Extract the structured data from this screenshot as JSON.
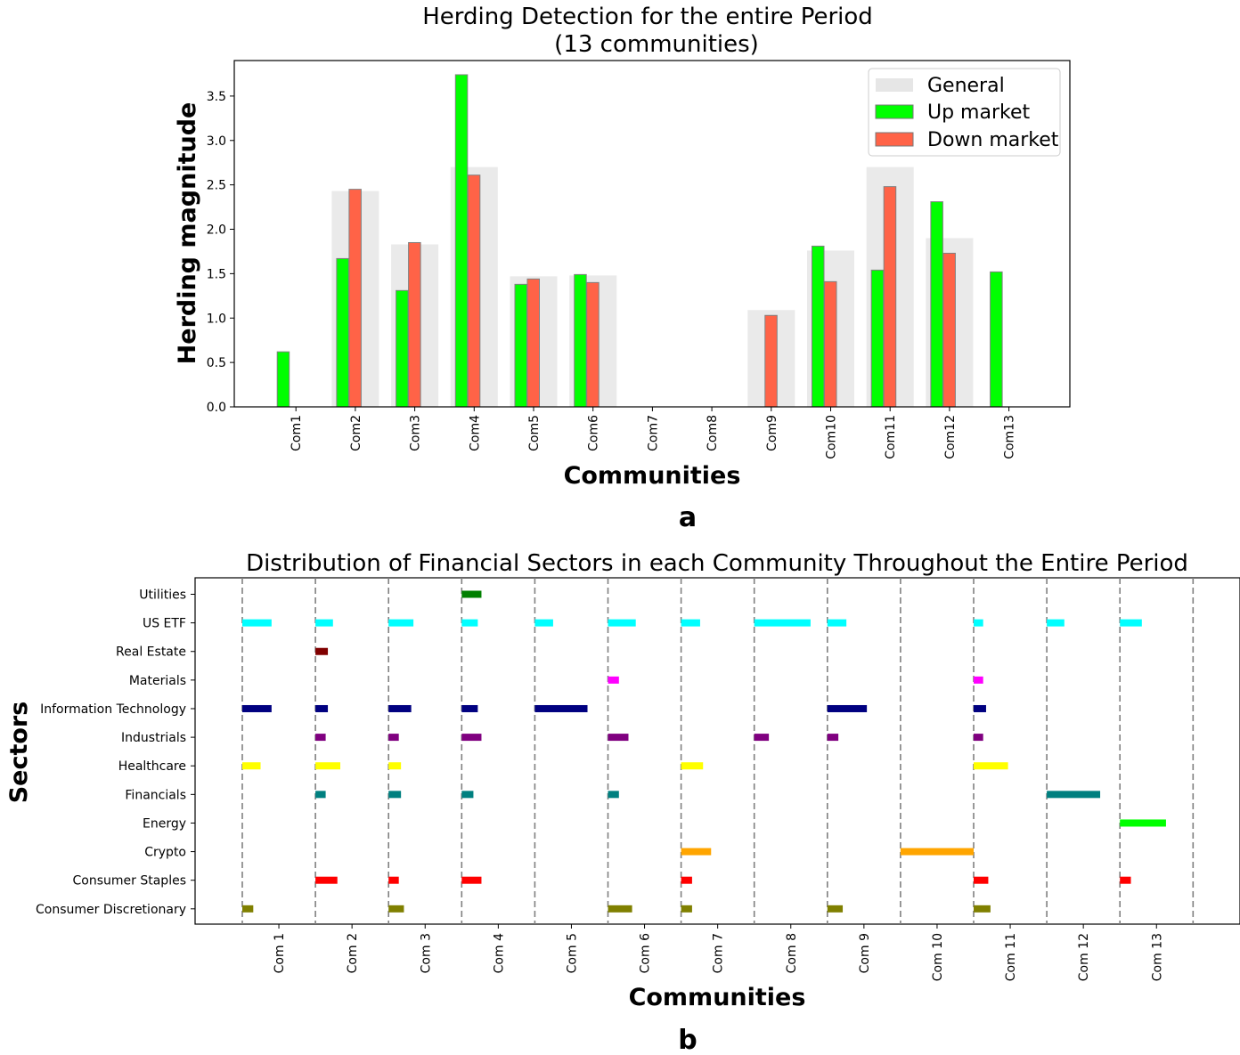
{
  "panel_a": {
    "label": "a",
    "chart_data": {
      "type": "bar",
      "title_line1": "Herding Detection for the entire Period",
      "title_line2": "(13 communities)",
      "xlabel": "Communities",
      "ylabel": "Herding magnitude",
      "categories": [
        "Com1",
        "Com2",
        "Com3",
        "Com4",
        "Com5",
        "Com6",
        "Com7",
        "Com8",
        "Com9",
        "Com10",
        "Com11",
        "Com12",
        "Com13"
      ],
      "yticks": [
        "0.0",
        "0.5",
        "1.0",
        "1.5",
        "2.0",
        "2.5",
        "3.0",
        "3.5"
      ],
      "ylim": [
        0,
        3.9
      ],
      "legend": [
        "General",
        "Up market",
        "Down market"
      ],
      "series": [
        {
          "name": "General",
          "color": "#e6e6e6",
          "values": [
            0,
            2.43,
            1.83,
            2.7,
            1.47,
            1.48,
            0,
            0,
            1.09,
            1.76,
            2.7,
            1.9,
            0
          ]
        },
        {
          "name": "Up market",
          "color": "#00ff00",
          "values": [
            0.62,
            1.67,
            1.31,
            3.74,
            1.38,
            1.49,
            0,
            0,
            0,
            1.81,
            1.54,
            2.31,
            1.52
          ]
        },
        {
          "name": "Down market",
          "color": "#ff6347",
          "values": [
            0,
            2.45,
            1.85,
            2.61,
            1.44,
            1.4,
            0,
            0,
            1.03,
            1.41,
            2.48,
            1.73,
            0
          ]
        }
      ]
    }
  },
  "panel_b": {
    "label": "b",
    "chart_data": {
      "type": "bar",
      "title": "Distribution of Financial Sectors in each Community Throughout the Entire Period",
      "xlabel": "Communities",
      "ylabel": "Sectors",
      "categories": [
        "Com 1",
        "Com 2",
        "Com 3",
        "Com 4",
        "Com 5",
        "Com 6",
        "Com 7",
        "Com 8",
        "Com 9",
        "Com 10",
        "Com 11",
        "Com 12",
        "Com 13"
      ],
      "sectors": [
        "Utilities",
        "US ETF",
        "Real Estate",
        "Materials",
        "Information Technology",
        "Industrials",
        "Healthcare",
        "Financials",
        "Energy",
        "Crypto",
        "Consumer Staples",
        "Consumer Discretionary"
      ],
      "sector_colors": {
        "Utilities": "#008000",
        "US ETF": "#00ffff",
        "Real Estate": "#800000",
        "Materials": "#ff00ff",
        "Information Technology": "#000080",
        "Industrials": "#800080",
        "Healthcare": "#ffff00",
        "Financials": "#008080",
        "Energy": "#00ff00",
        "Crypto": "#ffa500",
        "Consumer Staples": "#ff0000",
        "Consumer Discretionary": "#808000"
      },
      "shares": [
        {
          "community": "Com 1",
          "sector": "US ETF",
          "value": 0.4
        },
        {
          "community": "Com 1",
          "sector": "Information Technology",
          "value": 0.4
        },
        {
          "community": "Com 1",
          "sector": "Healthcare",
          "value": 0.25
        },
        {
          "community": "Com 1",
          "sector": "Consumer Discretionary",
          "value": 0.15
        },
        {
          "community": "Com 2",
          "sector": "US ETF",
          "value": 0.24
        },
        {
          "community": "Com 2",
          "sector": "Real Estate",
          "value": 0.17
        },
        {
          "community": "Com 2",
          "sector": "Information Technology",
          "value": 0.17
        },
        {
          "community": "Com 2",
          "sector": "Industrials",
          "value": 0.14
        },
        {
          "community": "Com 2",
          "sector": "Healthcare",
          "value": 0.34
        },
        {
          "community": "Com 2",
          "sector": "Financials",
          "value": 0.14
        },
        {
          "community": "Com 2",
          "sector": "Consumer Staples",
          "value": 0.3
        },
        {
          "community": "Com 3",
          "sector": "US ETF",
          "value": 0.34
        },
        {
          "community": "Com 3",
          "sector": "Information Technology",
          "value": 0.31
        },
        {
          "community": "Com 3",
          "sector": "Industrials",
          "value": 0.14
        },
        {
          "community": "Com 3",
          "sector": "Healthcare",
          "value": 0.17
        },
        {
          "community": "Com 3",
          "sector": "Financials",
          "value": 0.17
        },
        {
          "community": "Com 3",
          "sector": "Consumer Staples",
          "value": 0.14
        },
        {
          "community": "Com 3",
          "sector": "Consumer Discretionary",
          "value": 0.21
        },
        {
          "community": "Com 4",
          "sector": "Utilities",
          "value": 0.27
        },
        {
          "community": "Com 4",
          "sector": "US ETF",
          "value": 0.22
        },
        {
          "community": "Com 4",
          "sector": "Information Technology",
          "value": 0.22
        },
        {
          "community": "Com 4",
          "sector": "Industrials",
          "value": 0.27
        },
        {
          "community": "Com 4",
          "sector": "Financials",
          "value": 0.16
        },
        {
          "community": "Com 4",
          "sector": "Consumer Staples",
          "value": 0.27
        },
        {
          "community": "Com 5",
          "sector": "US ETF",
          "value": 0.25
        },
        {
          "community": "Com 5",
          "sector": "Information Technology",
          "value": 0.72
        },
        {
          "community": "Com 6",
          "sector": "US ETF",
          "value": 0.38
        },
        {
          "community": "Com 6",
          "sector": "Materials",
          "value": 0.15
        },
        {
          "community": "Com 6",
          "sector": "Industrials",
          "value": 0.28
        },
        {
          "community": "Com 6",
          "sector": "Financials",
          "value": 0.15
        },
        {
          "community": "Com 6",
          "sector": "Consumer Discretionary",
          "value": 0.33
        },
        {
          "community": "Com 7",
          "sector": "US ETF",
          "value": 0.26
        },
        {
          "community": "Com 7",
          "sector": "Healthcare",
          "value": 0.3
        },
        {
          "community": "Com 7",
          "sector": "Crypto",
          "value": 0.41
        },
        {
          "community": "Com 7",
          "sector": "Consumer Staples",
          "value": 0.15
        },
        {
          "community": "Com 7",
          "sector": "Consumer Discretionary",
          "value": 0.15
        },
        {
          "community": "Com 8",
          "sector": "US ETF",
          "value": 0.77
        },
        {
          "community": "Com 8",
          "sector": "Industrials",
          "value": 0.2
        },
        {
          "community": "Com 9",
          "sector": "US ETF",
          "value": 0.26
        },
        {
          "community": "Com 9",
          "sector": "Information Technology",
          "value": 0.54
        },
        {
          "community": "Com 9",
          "sector": "Industrials",
          "value": 0.15
        },
        {
          "community": "Com 9",
          "sector": "Consumer Discretionary",
          "value": 0.21
        },
        {
          "community": "Com 10",
          "sector": "Crypto",
          "value": 1.0
        },
        {
          "community": "Com 11",
          "sector": "US ETF",
          "value": 0.13
        },
        {
          "community": "Com 11",
          "sector": "Materials",
          "value": 0.13
        },
        {
          "community": "Com 11",
          "sector": "Information Technology",
          "value": 0.17
        },
        {
          "community": "Com 11",
          "sector": "Industrials",
          "value": 0.13
        },
        {
          "community": "Com 11",
          "sector": "Healthcare",
          "value": 0.47
        },
        {
          "community": "Com 11",
          "sector": "Consumer Staples",
          "value": 0.2
        },
        {
          "community": "Com 11",
          "sector": "Consumer Discretionary",
          "value": 0.23
        },
        {
          "community": "Com 12",
          "sector": "US ETF",
          "value": 0.24
        },
        {
          "community": "Com 12",
          "sector": "Financials",
          "value": 0.73
        },
        {
          "community": "Com 13",
          "sector": "US ETF",
          "value": 0.3
        },
        {
          "community": "Com 13",
          "sector": "Energy",
          "value": 0.63
        },
        {
          "community": "Com 13",
          "sector": "Consumer Staples",
          "value": 0.15
        }
      ]
    }
  }
}
